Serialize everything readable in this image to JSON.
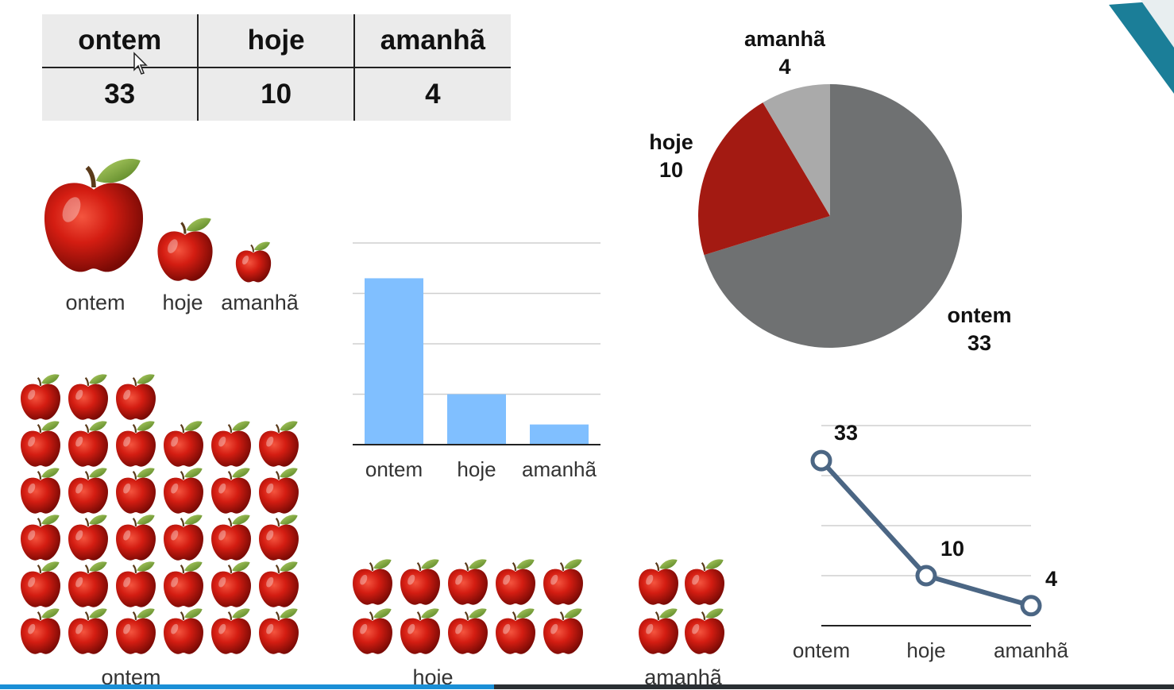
{
  "table": {
    "headers": [
      "ontem",
      "hoje",
      "amanhã"
    ],
    "values": [
      "33",
      "10",
      "4"
    ]
  },
  "size_apples": {
    "labels": [
      "ontem",
      "hoje",
      "amanhã"
    ]
  },
  "pictograph": {
    "labels": [
      "ontem",
      "hoje",
      "amanhã"
    ],
    "counts": [
      33,
      10,
      4
    ]
  },
  "chart_data": [
    {
      "type": "bar",
      "categories": [
        "ontem",
        "hoje",
        "amanhã"
      ],
      "values": [
        33,
        10,
        4
      ],
      "ylim": [
        0,
        40
      ],
      "grid": true,
      "color": "#80bfff"
    },
    {
      "type": "pie",
      "categories": [
        "ontem",
        "hoje",
        "amanhã"
      ],
      "values": [
        33,
        10,
        4
      ],
      "value_labels": [
        "33",
        "10",
        "4"
      ],
      "colors": [
        "#6f7172",
        "#a31a12",
        "#aaaaaa"
      ]
    },
    {
      "type": "line",
      "categories": [
        "ontem",
        "hoje",
        "amanhã"
      ],
      "values": [
        33,
        10,
        4
      ],
      "value_labels": [
        "33",
        "10",
        "4"
      ],
      "ylim": [
        0,
        40
      ],
      "grid": true,
      "color": "#4b6684"
    }
  ]
}
